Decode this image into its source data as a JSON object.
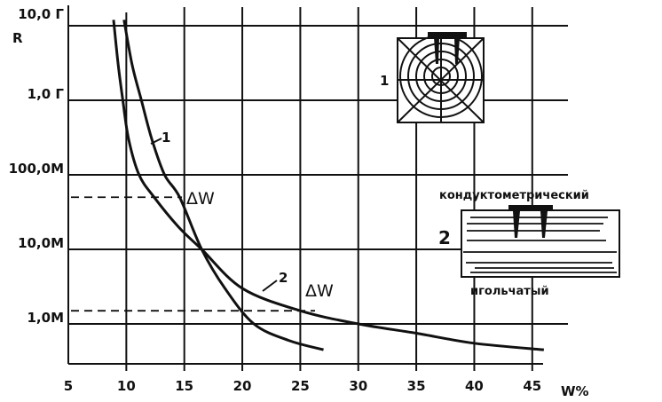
{
  "chart_data": {
    "type": "line",
    "title": "",
    "xlabel": "W%",
    "ylabel": "R",
    "xlim": [
      5,
      47
    ],
    "ylim": [
      300000,
      12000000000
    ],
    "yscale": "log",
    "grid": true,
    "x_ticks": [
      5,
      10,
      15,
      20,
      25,
      30,
      35,
      40,
      45
    ],
    "y_ticks": [
      {
        "value": 10000000000,
        "label": "10,0 Г"
      },
      {
        "value": 1000000000,
        "label": "1,0 Г"
      },
      {
        "value": 100000000,
        "label": "100,0М"
      },
      {
        "value": 10000000,
        "label": "10,0М"
      },
      {
        "value": 1000000,
        "label": "1,0М"
      }
    ],
    "series": [
      {
        "name": "1",
        "points": [
          [
            9.8,
            12000000000
          ],
          [
            10.5,
            3000000000
          ],
          [
            11.3,
            1000000000
          ],
          [
            12.2,
            300000000
          ],
          [
            13.3,
            100000000
          ],
          [
            14.6,
            50000000
          ],
          [
            16.5,
            10000000
          ],
          [
            18.5,
            3000000
          ],
          [
            21,
            1000000
          ],
          [
            24,
            600000
          ],
          [
            27,
            450000
          ]
        ]
      },
      {
        "name": "2",
        "points": [
          [
            8.9,
            12000000000
          ],
          [
            9.3,
            3000000000
          ],
          [
            9.7,
            1000000000
          ],
          [
            10.2,
            300000000
          ],
          [
            11.1,
            100000000
          ],
          [
            12.4,
            50000000
          ],
          [
            14.5,
            20000000
          ],
          [
            16.5,
            10000000
          ],
          [
            20,
            3000000
          ],
          [
            25,
            1500000
          ],
          [
            30,
            1000000
          ],
          [
            35,
            750000
          ],
          [
            40,
            550000
          ],
          [
            46,
            450000
          ]
        ]
      }
    ],
    "reference_lines": [
      {
        "y": 50000000,
        "annotation": "ΔW"
      },
      {
        "y": 1500000,
        "annotation": "ΔW"
      }
    ],
    "insets": [
      {
        "label": "1"
      },
      {
        "label": "2",
        "caption_top": "кондуктометрический",
        "caption_bottom": "игольчатый"
      }
    ]
  }
}
